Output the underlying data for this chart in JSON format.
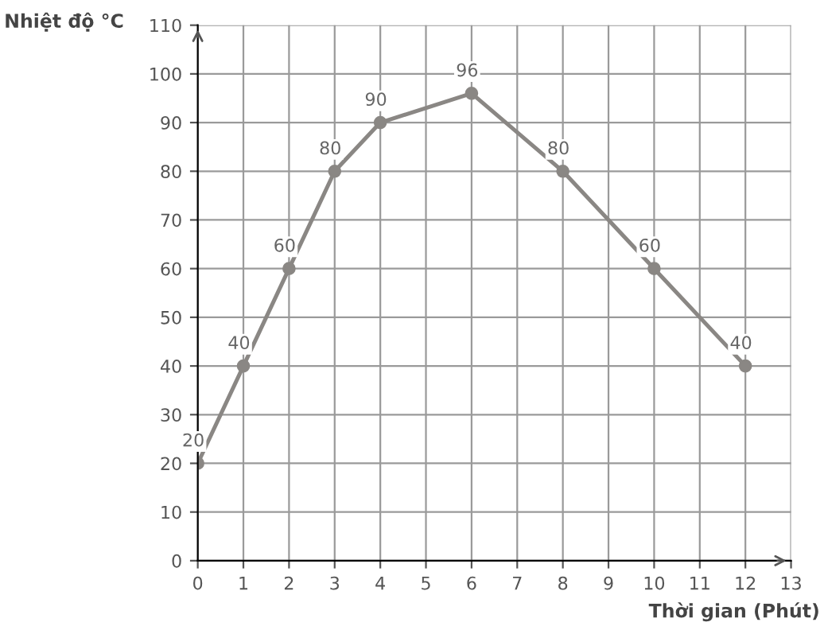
{
  "chart_data": {
    "type": "line",
    "xlabel": "Thời gian (Phút)",
    "ylabel": "Nhiệt độ °C",
    "x": [
      0,
      1,
      2,
      3,
      4,
      6,
      8,
      10,
      12
    ],
    "series": [
      {
        "color": "#8a8784",
        "values": [
          20,
          40,
          60,
          80,
          90,
          96,
          80,
          60,
          40
        ]
      }
    ],
    "data_labels": true,
    "marker": "circle",
    "line_style": "solid",
    "grid": true,
    "xlim": [
      0,
      13
    ],
    "xticks": [
      0,
      1,
      2,
      3,
      4,
      5,
      6,
      7,
      8,
      9,
      10,
      11,
      12,
      13
    ],
    "ylim": [
      0,
      110
    ],
    "yticks": [
      0,
      10,
      20,
      30,
      40,
      50,
      60,
      70,
      80,
      90,
      100,
      110
    ]
  }
}
